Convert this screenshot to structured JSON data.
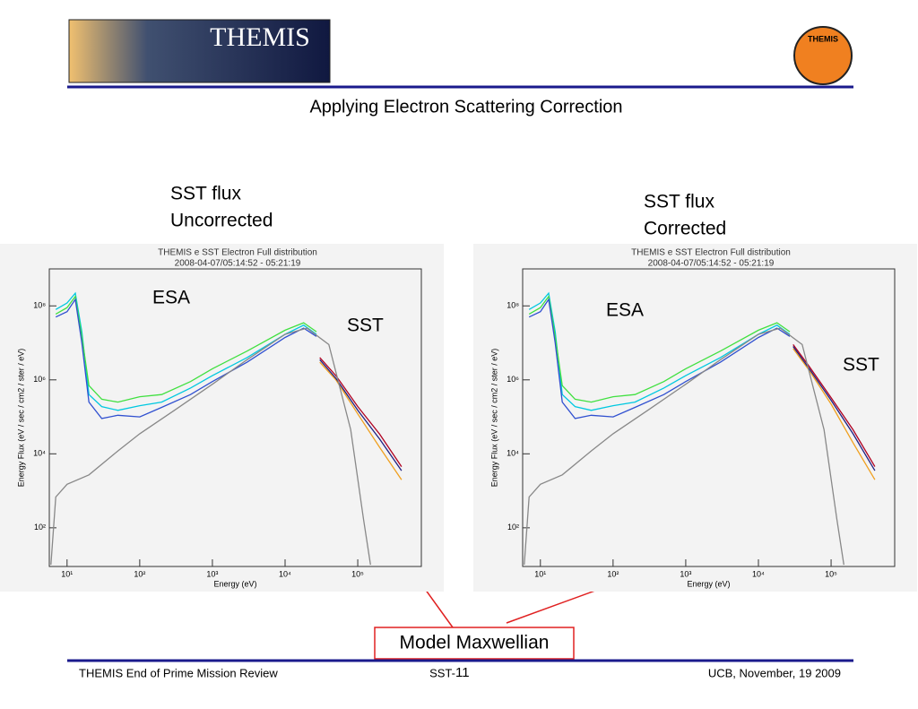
{
  "header": {
    "title": "Applying Electron Scattering Correction",
    "logo_text": "THEMIS"
  },
  "callout": "Model Maxwellian",
  "footer": {
    "left": "THEMIS End of Prime Mission Review",
    "center_prefix": "SST-",
    "center_num": "11",
    "right": "UCB, November, 19 2009"
  },
  "panels": [
    {
      "caption": [
        "SST flux",
        "Uncorrected"
      ],
      "esa_label": "ESA",
      "sst_label": "SST",
      "chart_data": {
        "type": "line",
        "title": "THEMIS e  SST Electron Full distribution",
        "subtitle": "2008-04-07/05:14:52 - 05:21:19",
        "xlabel": "Energy (eV)",
        "ylabel": "Energy Flux (eV / sec / cm2 / ster / eV)",
        "xlog": true,
        "ylog": true,
        "xlim": [
          5.7,
          750000
        ],
        "ylim": [
          9,
          1000000000
        ],
        "xticks": [
          {
            "value": 10,
            "label": "10¹"
          },
          {
            "value": 100,
            "label": "10²"
          },
          {
            "value": 1000,
            "label": "10³"
          },
          {
            "value": 10000,
            "label": "10⁴"
          },
          {
            "value": 100000,
            "label": "10⁵"
          }
        ],
        "yticks": [
          {
            "value": 100,
            "label": "10²"
          },
          {
            "value": 10000,
            "label": "10⁴"
          },
          {
            "value": 1000000,
            "label": "10⁶"
          },
          {
            "value": 100000000,
            "label": "10⁸"
          }
        ],
        "series": [
          {
            "color": "#00c8e0",
            "x": [
              7,
              10,
              13,
              16,
              20,
              30,
              50,
              100,
              200,
              500,
              1000,
              3000,
              10000,
              18000,
              27000
            ],
            "values": [
              80000000,
              120000000,
              220000000,
              20000000,
              400000,
              190000,
              150000,
              200000,
              250000,
              600000,
              1300000,
              4000000,
              17000000,
              30000000,
              17000000
            ]
          },
          {
            "color": "#40e040",
            "x": [
              7,
              10,
              13,
              16,
              20,
              30,
              50,
              100,
              200,
              500,
              1000,
              3000,
              10000,
              18000,
              27000
            ],
            "values": [
              60000000,
              90000000,
              180000000,
              15000000,
              700000,
              300000,
              250000,
              350000,
              400000,
              900000,
              2000000,
              6000000,
              22000000,
              35000000,
              20000000
            ]
          },
          {
            "color": "#3050d0",
            "x": [
              7,
              10,
              13,
              16,
              20,
              30,
              50,
              100,
              200,
              500,
              1000,
              3000,
              10000,
              18000,
              27000
            ],
            "values": [
              50000000,
              70000000,
              150000000,
              10000000,
              250000,
              90000,
              110000,
              100000,
              180000,
              400000,
              900000,
              3000000,
              14000000,
              25000000,
              15000000
            ]
          },
          {
            "color": "#b00020",
            "x": [
              30000,
              50000,
              100000,
              200000,
              400000
            ],
            "values": [
              4000000,
              1300000,
              190000,
              34000,
              4500
            ]
          },
          {
            "color": "#f0a020",
            "x": [
              30000,
              50000,
              100000,
              200000,
              400000
            ],
            "values": [
              3000000,
              1000000,
              120000,
              15000,
              2000
            ]
          },
          {
            "color": "#202080",
            "x": [
              30000,
              50000,
              100000,
              200000,
              400000
            ],
            "values": [
              3500000,
              1100000,
              150000,
              25000,
              3500
            ]
          },
          {
            "color": "#888888",
            "x": [
              6,
              7,
              10,
              20,
              50,
              100,
              300,
              1000,
              3000,
              10000,
              20000,
              40000,
              80000,
              120000,
              150000
            ],
            "values": [
              10,
              680,
              1500,
              2700,
              12000,
              35000,
              150000,
              760000,
              3500000,
              17000000,
              25000000,
              9000000,
              45000,
              170,
              10
            ]
          }
        ]
      }
    },
    {
      "caption": [
        "SST flux",
        "Corrected"
      ],
      "esa_label": "ESA",
      "sst_label": "SST",
      "chart_data": {
        "type": "line",
        "title": "THEMIS e  SST Electron Full distribution",
        "subtitle": "2008-04-07/05:14:52 - 05:21:19",
        "xlabel": "Energy (eV)",
        "ylabel": "Energy Flux (eV / sec / cm2 / ster / eV)",
        "xlog": true,
        "ylog": true,
        "xlim": [
          5.7,
          750000
        ],
        "ylim": [
          9,
          1000000000
        ],
        "xticks": [
          {
            "value": 10,
            "label": "10¹"
          },
          {
            "value": 100,
            "label": "10²"
          },
          {
            "value": 1000,
            "label": "10³"
          },
          {
            "value": 10000,
            "label": "10⁴"
          },
          {
            "value": 100000,
            "label": "10⁵"
          }
        ],
        "yticks": [
          {
            "value": 100,
            "label": "10²"
          },
          {
            "value": 10000,
            "label": "10⁴"
          },
          {
            "value": 1000000,
            "label": "10⁶"
          },
          {
            "value": 100000000,
            "label": "10⁸"
          }
        ],
        "series": [
          {
            "color": "#00c8e0",
            "x": [
              7,
              10,
              13,
              16,
              20,
              30,
              50,
              100,
              200,
              500,
              1000,
              3000,
              10000,
              18000,
              27000
            ],
            "values": [
              80000000,
              120000000,
              220000000,
              20000000,
              400000,
              190000,
              150000,
              200000,
              250000,
              600000,
              1300000,
              4000000,
              17000000,
              30000000,
              17000000
            ]
          },
          {
            "color": "#40e040",
            "x": [
              7,
              10,
              13,
              16,
              20,
              30,
              50,
              100,
              200,
              500,
              1000,
              3000,
              10000,
              18000,
              27000
            ],
            "values": [
              60000000,
              90000000,
              180000000,
              15000000,
              700000,
              300000,
              250000,
              350000,
              400000,
              900000,
              2000000,
              6000000,
              22000000,
              35000000,
              20000000
            ]
          },
          {
            "color": "#3050d0",
            "x": [
              7,
              10,
              13,
              16,
              20,
              30,
              50,
              100,
              200,
              500,
              1000,
              3000,
              10000,
              18000,
              27000
            ],
            "values": [
              50000000,
              70000000,
              150000000,
              10000000,
              250000,
              90000,
              110000,
              100000,
              180000,
              400000,
              900000,
              3000000,
              14000000,
              25000000,
              15000000
            ]
          },
          {
            "color": "#b00020",
            "x": [
              30000,
              50000,
              100000,
              200000,
              400000
            ],
            "values": [
              9000000,
              2300000,
              330000,
              45000,
              4500
            ]
          },
          {
            "color": "#f0a020",
            "x": [
              30000,
              50000,
              100000,
              200000,
              400000
            ],
            "values": [
              7000000,
              1800000,
              220000,
              20000,
              2000
            ]
          },
          {
            "color": "#202080",
            "x": [
              30000,
              50000,
              100000,
              200000,
              400000
            ],
            "values": [
              8000000,
              2000000,
              280000,
              35000,
              3500
            ]
          },
          {
            "color": "#888888",
            "x": [
              6,
              7,
              10,
              20,
              50,
              100,
              300,
              1000,
              3000,
              10000,
              20000,
              40000,
              80000,
              120000,
              150000
            ],
            "values": [
              10,
              680,
              1500,
              2700,
              12000,
              35000,
              150000,
              760000,
              3500000,
              17000000,
              25000000,
              9000000,
              45000,
              170,
              10
            ]
          }
        ]
      }
    }
  ]
}
